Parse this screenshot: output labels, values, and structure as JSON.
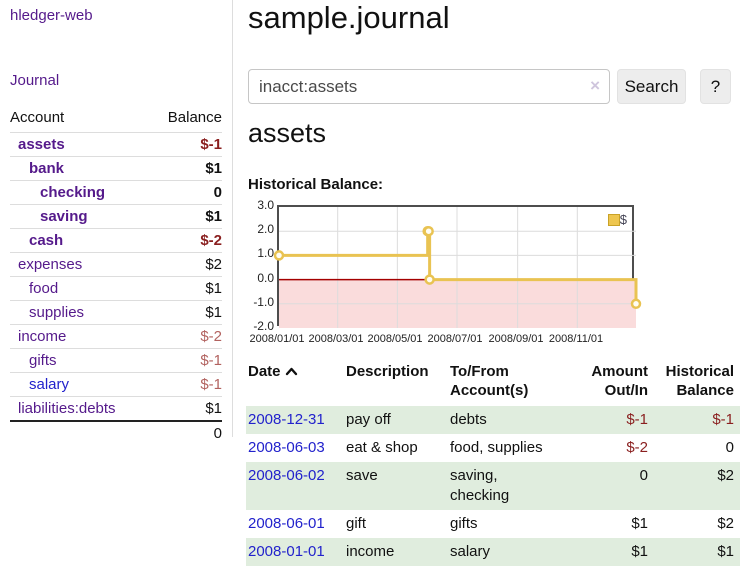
{
  "app": {
    "title": "hledger-web"
  },
  "sidebar": {
    "journal_link": "Journal",
    "accounts_table": {
      "headers": {
        "account": "Account",
        "balance": "Balance"
      },
      "rows": [
        {
          "name": "assets",
          "balance": "$-1"
        },
        {
          "name": "bank",
          "balance": "$1"
        },
        {
          "name": "checking",
          "balance": "0"
        },
        {
          "name": "saving",
          "balance": "$1"
        },
        {
          "name": "cash",
          "balance": "$-2"
        },
        {
          "name": "expenses",
          "balance": "$2"
        },
        {
          "name": "food",
          "balance": "$1"
        },
        {
          "name": "supplies",
          "balance": "$1"
        },
        {
          "name": "income",
          "balance": "$-2"
        },
        {
          "name": "gifts",
          "balance": "$-1"
        },
        {
          "name": "salary",
          "balance": "$-1"
        },
        {
          "name": "liabilities:debts",
          "balance": "$1"
        }
      ],
      "total": "0"
    }
  },
  "header": {
    "title": "sample.journal"
  },
  "search": {
    "value": "inacct:assets",
    "clear_icon": "×",
    "button_label": "Search",
    "help_label": "?"
  },
  "account_page": {
    "title": "assets",
    "chart_heading": "Historical Balance:"
  },
  "chart_data": {
    "type": "line",
    "step": true,
    "title": "Historical Balance:",
    "series": [
      {
        "name": "$",
        "points": [
          {
            "date": "2008-01-01",
            "value": 1
          },
          {
            "date": "2008-06-01",
            "value": 2
          },
          {
            "date": "2008-06-02",
            "value": 2
          },
          {
            "date": "2008-06-03",
            "value": 0
          },
          {
            "date": "2008-12-31",
            "value": -1
          }
        ]
      }
    ],
    "x_range": [
      "2008-01-01",
      "2008-12-31"
    ],
    "ylim": [
      -2,
      3
    ],
    "y_ticks": [
      "3.0",
      "2.0",
      "1.0",
      "0.0",
      "-1.0",
      "-2.0"
    ],
    "x_tick_labels": [
      "2008/01/01",
      "2008/03/01",
      "2008/05/01",
      "2008/07/01",
      "2008/09/01",
      "2008/11/01"
    ],
    "x_grid_dates": [
      "2008-03-01",
      "2008-05-01",
      "2008-07-01",
      "2008-09-01",
      "2008-11-01"
    ],
    "legend": {
      "label": "$",
      "position": "top-right",
      "color": "#eec64f"
    },
    "line_color": "#e9c352",
    "zero_line_color": "#a40000",
    "negative_region_color": "#fadcdc",
    "grid": true
  },
  "register": {
    "headers": {
      "date": "Date",
      "description": "Description",
      "accounts": "To/From Account(s)",
      "amount": "Amount Out/In",
      "balance": "Historical Balance"
    },
    "rows": [
      {
        "date": "2008-12-31",
        "description": "pay off",
        "accounts": "debts",
        "amount": "$-1",
        "balance": "$-1"
      },
      {
        "date": "2008-06-03",
        "description": "eat & shop",
        "accounts": "food, supplies",
        "amount": "$-2",
        "balance": "0"
      },
      {
        "date": "2008-06-02",
        "description": "save",
        "accounts": "saving, checking",
        "amount": "0",
        "balance": "$2"
      },
      {
        "date": "2008-06-01",
        "description": "gift",
        "accounts": "gifts",
        "amount": "$1",
        "balance": "$2"
      },
      {
        "date": "2008-01-01",
        "description": "income",
        "accounts": "salary",
        "amount": "$1",
        "balance": "$1"
      }
    ]
  }
}
